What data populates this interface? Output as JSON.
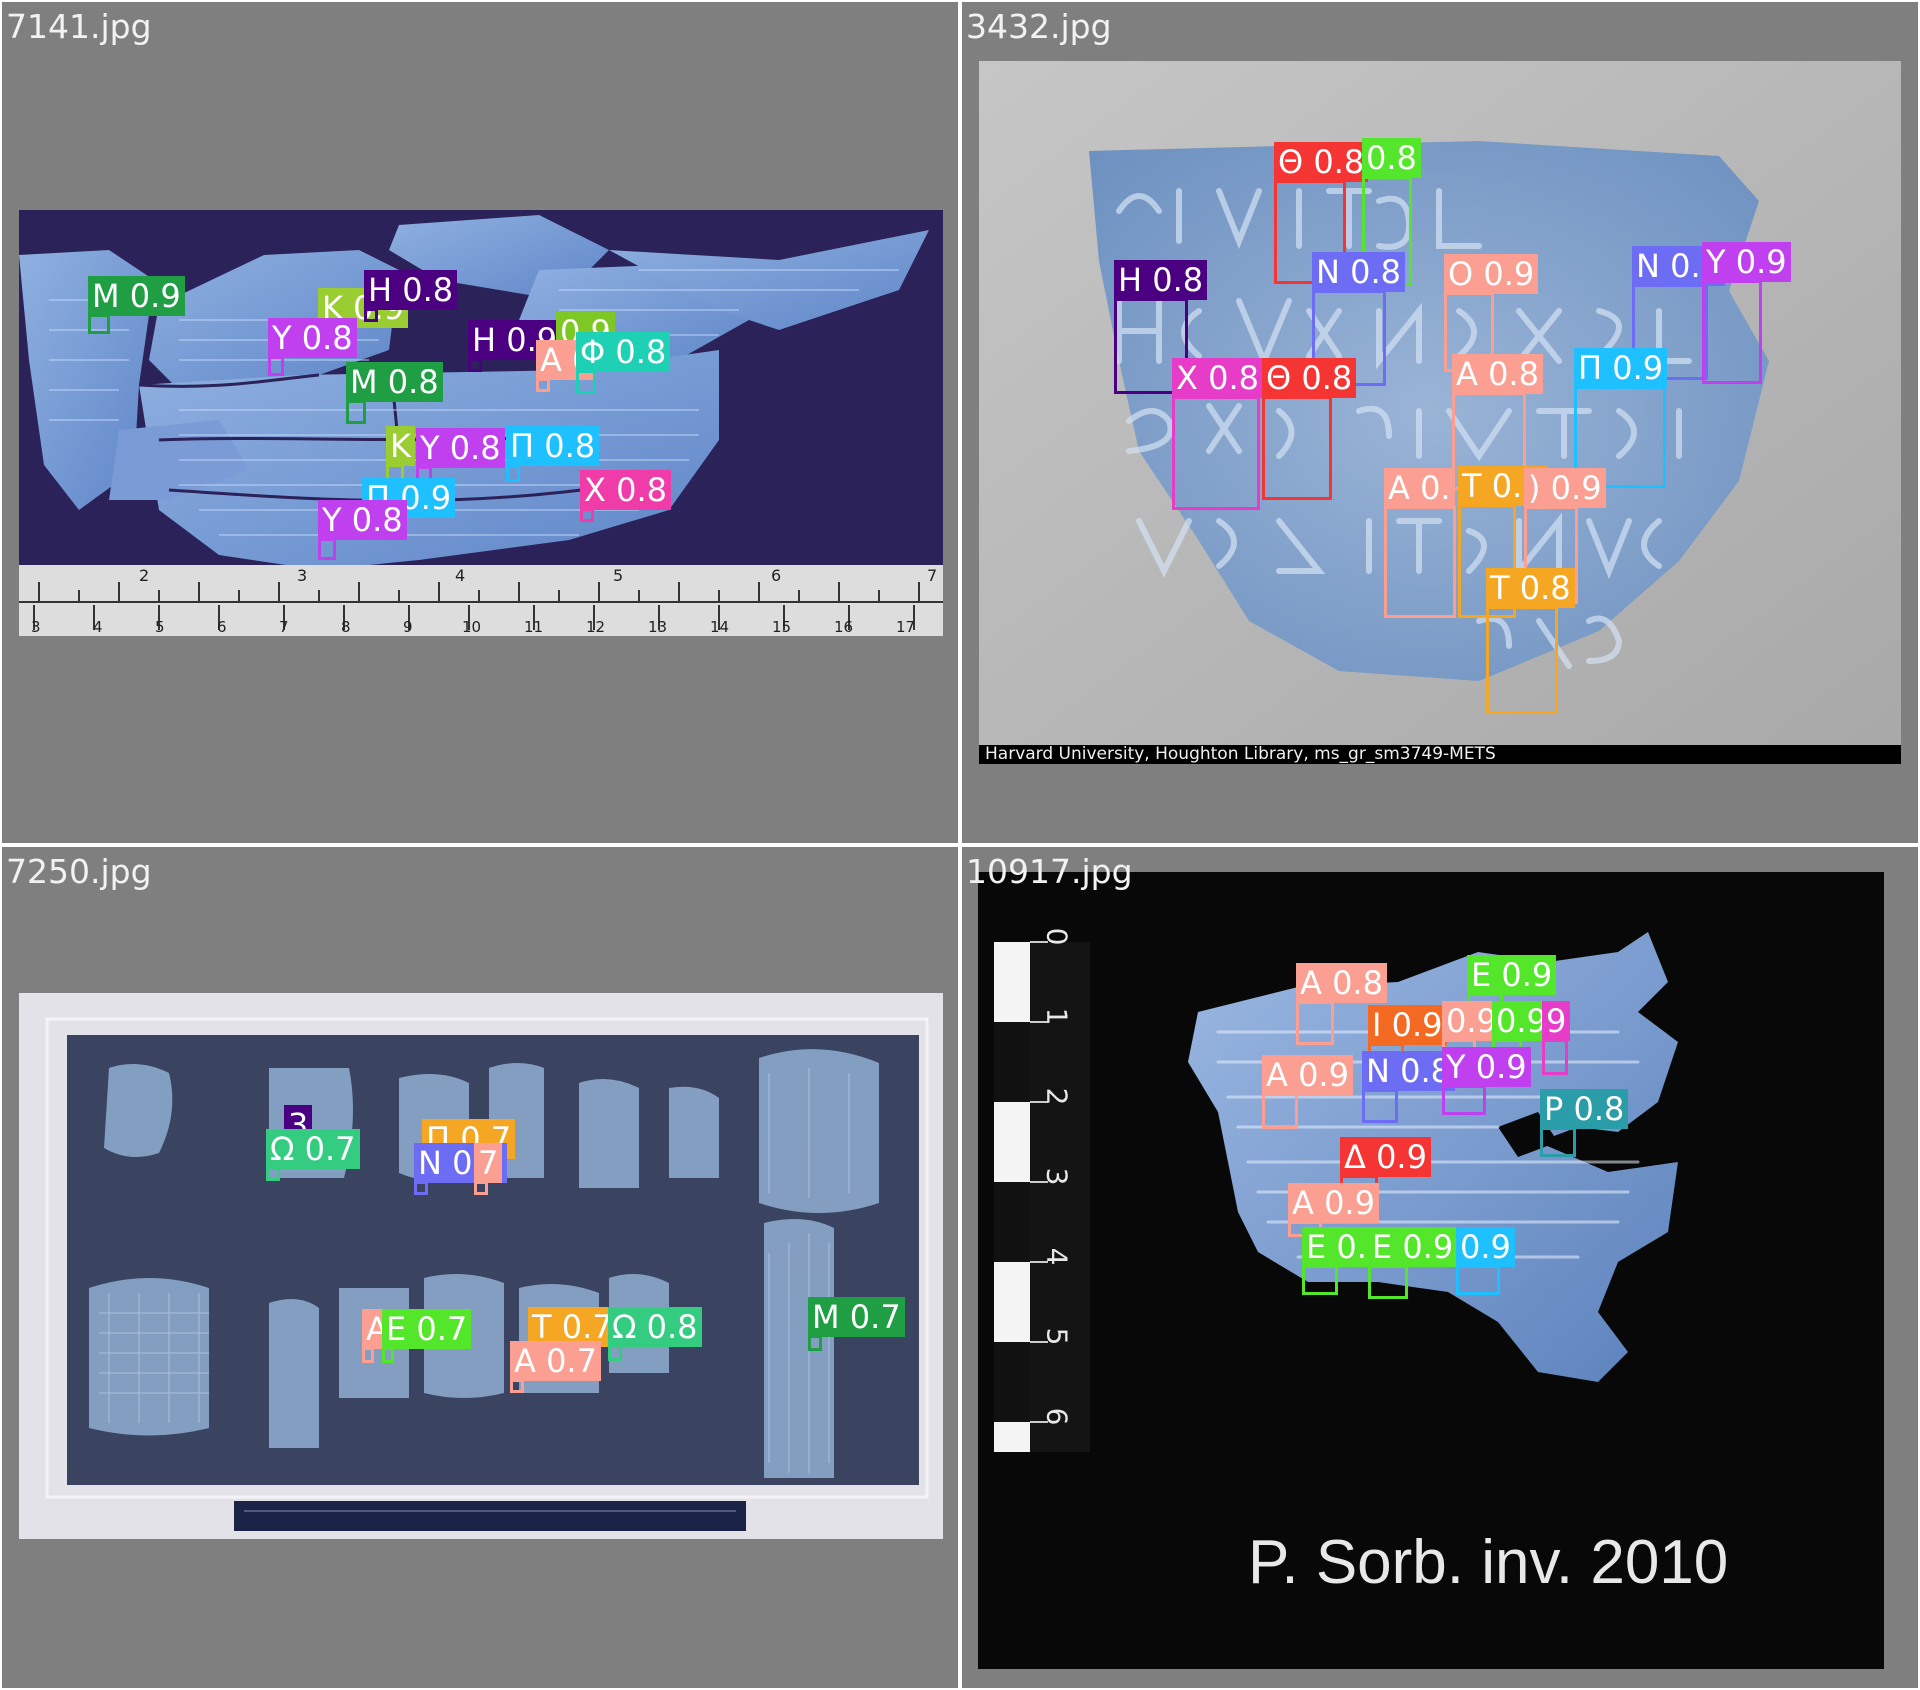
{
  "panels": {
    "p7141": {
      "filename": "7141.jpg",
      "ruler_top": [
        "2",
        "3",
        "4",
        "5",
        "6",
        "7"
      ],
      "ruler_bottom": [
        "3",
        "4",
        "5",
        "6",
        "7",
        "8",
        "9",
        "10",
        "11",
        "12",
        "13",
        "14",
        "15",
        "16",
        "17"
      ],
      "detections": [
        {
          "label": "M 0.9",
          "color": "#1f9e44"
        },
        {
          "label": "K 0.9",
          "color": "#9acd32"
        },
        {
          "label": "H 0.8",
          "color": "#4b0082"
        },
        {
          "label": "Y 0.8",
          "color": "#c040f0"
        },
        {
          "label": "H 0.9",
          "color": "#4b0082"
        },
        {
          "label": "0.9",
          "color": "#7ec826"
        },
        {
          "label": "A 0",
          "color": "#fa9f91"
        },
        {
          "label": "Φ 0.8",
          "color": "#1fd1b4"
        },
        {
          "label": "M 0.8",
          "color": "#1f9e44"
        },
        {
          "label": "K",
          "color": "#9acd32"
        },
        {
          "label": "Y 0.8",
          "color": "#c040f0"
        },
        {
          "label": "Π 0.8",
          "color": "#1ec0ff"
        },
        {
          "label": "Π 0.9",
          "color": "#1ec0ff"
        },
        {
          "label": "X 0.8",
          "color": "#f03ca8"
        },
        {
          "label": "Y 0.8",
          "color": "#c040f0"
        }
      ]
    },
    "p3432": {
      "filename": "3432.jpg",
      "credit": "Harvard University, Houghton Library, ms_gr_sm3749-METS",
      "detections": [
        {
          "label": "Θ 0.8",
          "color": "#f53434"
        },
        {
          "label": "0.8",
          "color": "#54e62a"
        },
        {
          "label": "H 0.8",
          "color": "#4b0082"
        },
        {
          "label": "N 0.8",
          "color": "#6c6cf5"
        },
        {
          "label": "O 0.9",
          "color": "#fa9f91"
        },
        {
          "label": "N 0.8",
          "color": "#6c6cf5"
        },
        {
          "label": "Y 0.9",
          "color": "#c040f0"
        },
        {
          "label": "X 0.8",
          "color": "#e63cc8"
        },
        {
          "label": "Θ 0.8",
          "color": "#f53434"
        },
        {
          "label": "A 0.8",
          "color": "#fa9f91"
        },
        {
          "label": "Π 0.9",
          "color": "#1ec0ff"
        },
        {
          "label": "A 0.",
          "color": "#fa9f91"
        },
        {
          "label": "T 0.9",
          "color": "#f5a623"
        },
        {
          "label": ") 0.9",
          "color": "#fa9f91"
        },
        {
          "label": "T 0.8",
          "color": "#f5a623"
        }
      ]
    },
    "p7250": {
      "filename": "7250.jpg",
      "detections": [
        {
          "label": "3",
          "color": "#4b0082"
        },
        {
          "label": "Ω 0.7",
          "color": "#34cc80"
        },
        {
          "label": "Π 0.7",
          "color": "#f5a623"
        },
        {
          "label": "N 0.7",
          "color": "#6c6cf5"
        },
        {
          "label": "7",
          "color": "#fa9f91"
        },
        {
          "label": "A",
          "color": "#fa9f91"
        },
        {
          "label": "E 0.7",
          "color": "#54e62a"
        },
        {
          "label": "T 0.7",
          "color": "#f5a623"
        },
        {
          "label": "Ω 0.8",
          "color": "#34cc80"
        },
        {
          "label": "A 0.7",
          "color": "#fa9f91"
        },
        {
          "label": "M 0.7",
          "color": "#1f9e44"
        }
      ]
    },
    "p10917": {
      "filename": "10917.jpg",
      "caption": "P. Sorb. inv. 2010",
      "scale": [
        "0",
        "1",
        "2",
        "3",
        "4",
        "5",
        "6"
      ],
      "detections": [
        {
          "label": "A 0.8",
          "color": "#fa9f91"
        },
        {
          "label": "E 0.9",
          "color": "#54e62a"
        },
        {
          "label": "I 0.9",
          "color": "#f56a22"
        },
        {
          "label": "0.9",
          "color": "#fa9f91"
        },
        {
          "label": "0.9",
          "color": "#54e62a"
        },
        {
          "label": "9",
          "color": "#e63cc8"
        },
        {
          "label": "A 0.9",
          "color": "#fa9f91"
        },
        {
          "label": "N 0.8",
          "color": "#6c6cf5"
        },
        {
          "label": "Y 0.9",
          "color": "#c040f0"
        },
        {
          "label": "P 0.8",
          "color": "#2a9da8"
        },
        {
          "label": "Δ 0.9",
          "color": "#f53434"
        },
        {
          "label": "A 0.9",
          "color": "#fa9f91"
        },
        {
          "label": "E 0.",
          "color": "#54e62a"
        },
        {
          "label": "E 0.9",
          "color": "#54e62a"
        },
        {
          "label": "0.9",
          "color": "#1ec0ff"
        }
      ]
    }
  }
}
